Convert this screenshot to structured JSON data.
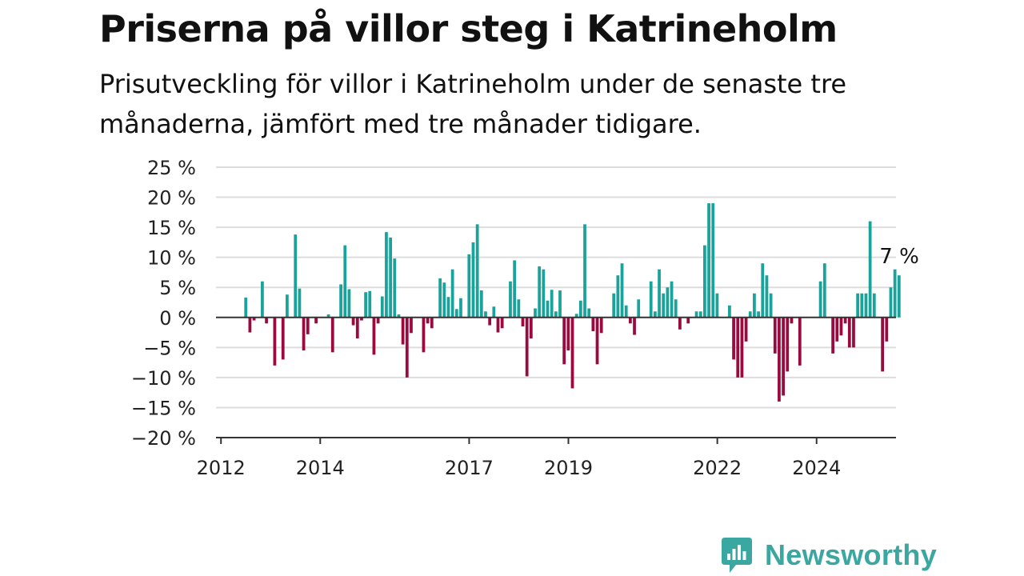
{
  "header": {
    "title": "Priserna på villor steg i Katrineholm",
    "subtitle": "Prisutveckling för villor i Katrineholm under de senaste tre månaderna, jämfört med tre månader tidigare."
  },
  "brand": {
    "name": "Newsworthy",
    "icon": "newsworthy-chart-bubble-icon"
  },
  "colors": {
    "positive": "#1aa39a",
    "negative": "#9b0a3e",
    "grid": "#dddddd",
    "axis": "#333333",
    "brand": "#3aa7a0"
  },
  "chart_data": {
    "type": "bar",
    "title": "Priserna på villor steg i Katrineholm",
    "xlabel": "",
    "ylabel": "",
    "ylim": [
      -20,
      25
    ],
    "yticks": [
      25,
      20,
      15,
      10,
      5,
      0,
      -5,
      -10,
      -15,
      -20
    ],
    "ytick_labels": [
      "25 %",
      "20 %",
      "15 %",
      "10 %",
      "5 %",
      "0 %",
      "−5 %",
      "−10 %",
      "−15 %",
      "−20 %"
    ],
    "xticks": [
      {
        "x": 2012.0,
        "label": "2012"
      },
      {
        "x": 2014.0,
        "label": "2014"
      },
      {
        "x": 2017.0,
        "label": "2017"
      },
      {
        "x": 2019.0,
        "label": "2019"
      },
      {
        "x": 2022.0,
        "label": "2022"
      },
      {
        "x": 2024.0,
        "label": "2024"
      }
    ],
    "xlim": [
      2011.9,
      2025.6
    ],
    "start": 2012.5,
    "step": 0.0833,
    "grid": true,
    "legend": "none",
    "annotation": {
      "label": "7 %",
      "target": "last"
    },
    "values": [
      3.3,
      -2.5,
      -0.5,
      0,
      6,
      -1,
      0,
      -8,
      0,
      -7,
      3.8,
      0,
      13.8,
      4.8,
      -5.5,
      -2.8,
      0,
      -1,
      0,
      0,
      0.5,
      -5.8,
      0,
      5.5,
      12,
      4.7,
      -1.3,
      -3.5,
      -0.5,
      4.2,
      4.4,
      -6.2,
      -1,
      3.5,
      14.2,
      13.3,
      9.8,
      0.5,
      -4.5,
      -10,
      -2.6,
      0,
      0,
      -5.8,
      -1,
      -1.8,
      0,
      6.5,
      5.8,
      3.4,
      8,
      1.4,
      3.2,
      0,
      10.5,
      12.5,
      15.5,
      4.5,
      1,
      -1.3,
      1.8,
      -2.5,
      -1.8,
      0,
      6,
      9.5,
      3,
      -1.5,
      -9.8,
      -3.5,
      1.5,
      8.5,
      8,
      2.8,
      4.6,
      1,
      4.5,
      -7.8,
      -5.5,
      -11.8,
      0.6,
      2.8,
      15.5,
      1.5,
      -2.3,
      -7.8,
      -2.6,
      0,
      0,
      4,
      7,
      9,
      2,
      -1,
      -2.9,
      3,
      0,
      0,
      6,
      1,
      8,
      4,
      5,
      6,
      3,
      -2,
      0,
      -1,
      0,
      1,
      1,
      12,
      19,
      19,
      4,
      0,
      0,
      2,
      -7,
      -10,
      -10,
      -4,
      1,
      4,
      1,
      9,
      7,
      4,
      -6,
      -14,
      -13,
      -9,
      -1,
      0,
      -8,
      0,
      0,
      0,
      0,
      6,
      9,
      0,
      -6,
      -4,
      -3,
      -1,
      -5,
      -5,
      4,
      4,
      4,
      16,
      4,
      0,
      -9,
      -4,
      5,
      8,
      7
    ]
  }
}
